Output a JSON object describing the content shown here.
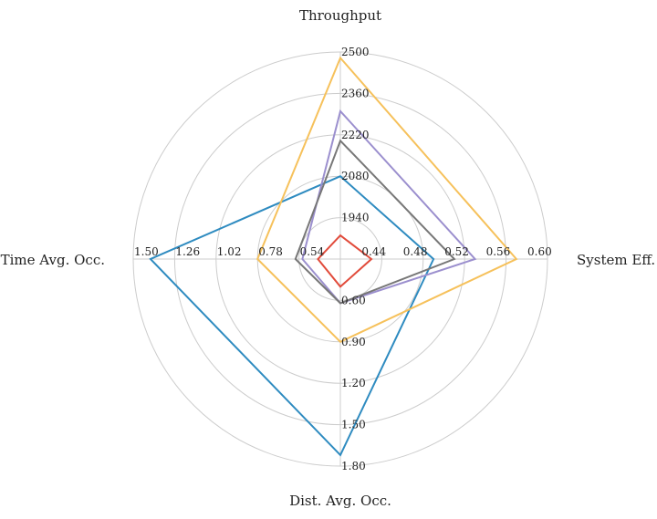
{
  "chart_data": {
    "type": "radar",
    "axes": [
      {
        "label": "Throughput",
        "ticks": [
          "1940",
          "2080",
          "2220",
          "2360",
          "2500"
        ],
        "range": [
          1800,
          2500
        ]
      },
      {
        "label": "System Eff.",
        "ticks": [
          "0.44",
          "0.48",
          "0.52",
          "0.56",
          "0.60"
        ],
        "range": [
          0.4,
          0.6
        ]
      },
      {
        "label": "Dist. Avg. Occ.",
        "ticks": [
          "0.60",
          "0.90",
          "1.20",
          "1.50",
          "1.80"
        ],
        "range": [
          0.3,
          1.8
        ]
      },
      {
        "label": "Time Avg. Occ.",
        "ticks": [
          "0.54",
          "0.78",
          "1.02",
          "1.26",
          "1.50"
        ],
        "range": [
          0.3,
          1.5
        ]
      }
    ],
    "series": [
      {
        "values": [
          2080,
          0.49,
          1.72,
          1.4
        ],
        "color": "#2e8bc0"
      },
      {
        "values": [
          2480,
          0.57,
          0.9,
          0.78
        ],
        "color": "#f6c15b"
      },
      {
        "values": [
          2300,
          0.53,
          0.62,
          0.52
        ],
        "color": "#9b8fce"
      },
      {
        "values": [
          2200,
          0.51,
          0.62,
          0.56
        ],
        "color": "#777777"
      },
      {
        "values": [
          1880,
          0.43,
          0.5,
          0.43
        ],
        "color": "#e14b3b"
      }
    ],
    "grid": true,
    "legend": "none"
  }
}
